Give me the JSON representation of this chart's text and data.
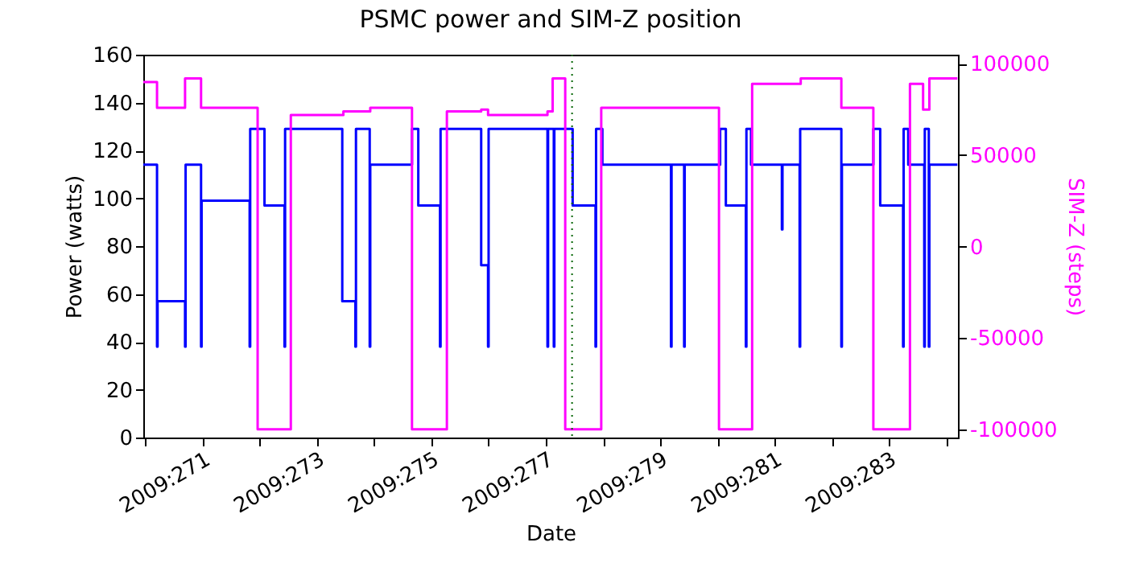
{
  "chart_data": {
    "type": "step",
    "title": "PSMC power and SIM-Z position",
    "xlabel": "Date",
    "ylabel": "Power (watts)",
    "y2label": "SIM-Z (steps)",
    "xlim": [
      "2009-09-26T23:02",
      "2009-10-11T05:02"
    ],
    "xticks": [
      {
        "value": "2009-09-27",
        "label": null
      },
      {
        "value": "2009-09-28",
        "label": "2009:271"
      },
      {
        "value": "2009-09-29",
        "label": null
      },
      {
        "value": "2009-09-30",
        "label": "2009:273"
      },
      {
        "value": "2009-10-01",
        "label": null
      },
      {
        "value": "2009-10-02",
        "label": "2009:275"
      },
      {
        "value": "2009-10-03",
        "label": null
      },
      {
        "value": "2009-10-04",
        "label": "2009:277"
      },
      {
        "value": "2009-10-05",
        "label": null
      },
      {
        "value": "2009-10-06",
        "label": "2009:279"
      },
      {
        "value": "2009-10-07",
        "label": null
      },
      {
        "value": "2009-10-08",
        "label": "2009:281"
      },
      {
        "value": "2009-10-09",
        "label": null
      },
      {
        "value": "2009-10-10",
        "label": "2009:283"
      },
      {
        "value": "2009-10-11",
        "label": null
      }
    ],
    "ylim": [
      0,
      160
    ],
    "yticks": [
      0,
      20,
      40,
      60,
      80,
      100,
      120,
      140,
      160
    ],
    "y2lim": [
      -104500,
      105000
    ],
    "y2ticks": [
      -100000,
      -50000,
      0,
      50000,
      100000
    ],
    "grid": false,
    "marker": "none",
    "line_style": "solid",
    "series": [
      {
        "color": "#0000ff",
        "x": [
          "2009-09-26T23:02",
          "2009-09-27T04:48",
          "2009-09-27T05:02",
          "2009-09-27T16:34",
          "2009-09-27T16:48",
          "2009-09-27T23:17",
          "2009-09-27T23:31",
          "2009-09-28T19:41",
          "2009-09-28T19:55",
          "2009-09-29T01:55",
          "2009-09-29T10:19",
          "2009-09-29T10:34",
          "2009-09-30T10:34",
          "2009-09-30T16:05",
          "2009-09-30T16:19",
          "2009-09-30T22:05",
          "2009-09-30T22:19",
          "2009-10-01T15:50",
          "2009-10-01T18:29",
          "2009-10-02T03:36",
          "2009-10-02T03:50",
          "2009-10-02T20:53",
          "2009-10-02T23:46",
          "2009-10-03T00:00",
          "2009-10-04T00:43",
          "2009-10-04T00:58",
          "2009-10-04T03:22",
          "2009-10-04T03:36",
          "2009-10-04T11:17",
          "2009-10-04T20:53",
          "2009-10-04T21:07",
          "2009-10-04T23:46",
          "2009-10-06T04:34",
          "2009-10-06T04:48",
          "2009-10-06T10:05",
          "2009-10-06T10:19",
          "2009-10-07T01:12",
          "2009-10-07T03:36",
          "2009-10-07T12:00",
          "2009-10-07T12:14",
          "2009-10-07T14:10",
          "2009-10-08T03:07",
          "2009-10-08T03:22",
          "2009-10-08T10:34",
          "2009-10-08T10:48",
          "2009-10-09T04:05",
          "2009-10-09T04:19",
          "2009-10-09T17:31",
          "2009-10-09T20:24",
          "2009-10-10T06:00",
          "2009-10-10T06:14",
          "2009-10-10T08:10",
          "2009-10-10T14:53",
          "2009-10-10T15:07",
          "2009-10-10T16:48",
          "2009-10-10T17:02",
          "2009-10-11T04:48"
        ],
        "values": [
          114,
          38,
          57,
          38,
          114,
          38,
          99,
          38,
          129,
          97,
          38,
          129,
          57,
          38,
          129,
          38,
          114,
          129,
          97,
          38,
          129,
          72,
          38,
          129,
          38,
          129,
          38,
          129,
          97,
          38,
          129,
          114,
          38,
          114,
          38,
          114,
          129,
          97,
          38,
          129,
          114,
          87,
          114,
          38,
          129,
          38,
          114,
          129,
          97,
          38,
          129,
          114,
          38,
          129,
          38,
          114,
          114
        ]
      },
      {
        "color": "#ff00ff",
        "axis": "y2",
        "x": [
          "2009-09-26T23:02",
          "2009-09-27T04:48",
          "2009-09-27T16:34",
          "2009-09-27T23:17",
          "2009-09-28T23:02",
          "2009-09-29T12:58",
          "2009-09-30T11:02",
          "2009-09-30T15:36",
          "2009-09-30T22:19",
          "2009-10-01T15:50",
          "2009-10-02T06:29",
          "2009-10-02T20:53",
          "2009-10-02T23:46",
          "2009-10-04T00:43",
          "2009-10-04T02:53",
          "2009-10-04T08:10",
          "2009-10-04T23:17",
          "2009-10-07T00:43",
          "2009-10-07T14:38",
          "2009-10-08T11:02",
          "2009-10-09T04:05",
          "2009-10-09T17:31",
          "2009-10-10T08:53",
          "2009-10-10T14:24",
          "2009-10-10T17:02",
          "2009-10-11T04:48"
        ],
        "values": [
          90000,
          76000,
          92000,
          76000,
          -100000,
          72000,
          74000,
          74000,
          76000,
          -100000,
          74000,
          75000,
          72000,
          74000,
          92000,
          -100000,
          76000,
          -100000,
          89000,
          92000,
          76000,
          -100000,
          89000,
          75000,
          92000,
          92000
        ]
      }
    ],
    "ref_lines": [
      {
        "axis": "x",
        "value": "2009-10-04T11:02",
        "color": "#006400",
        "line_style": "dotted"
      }
    ]
  }
}
